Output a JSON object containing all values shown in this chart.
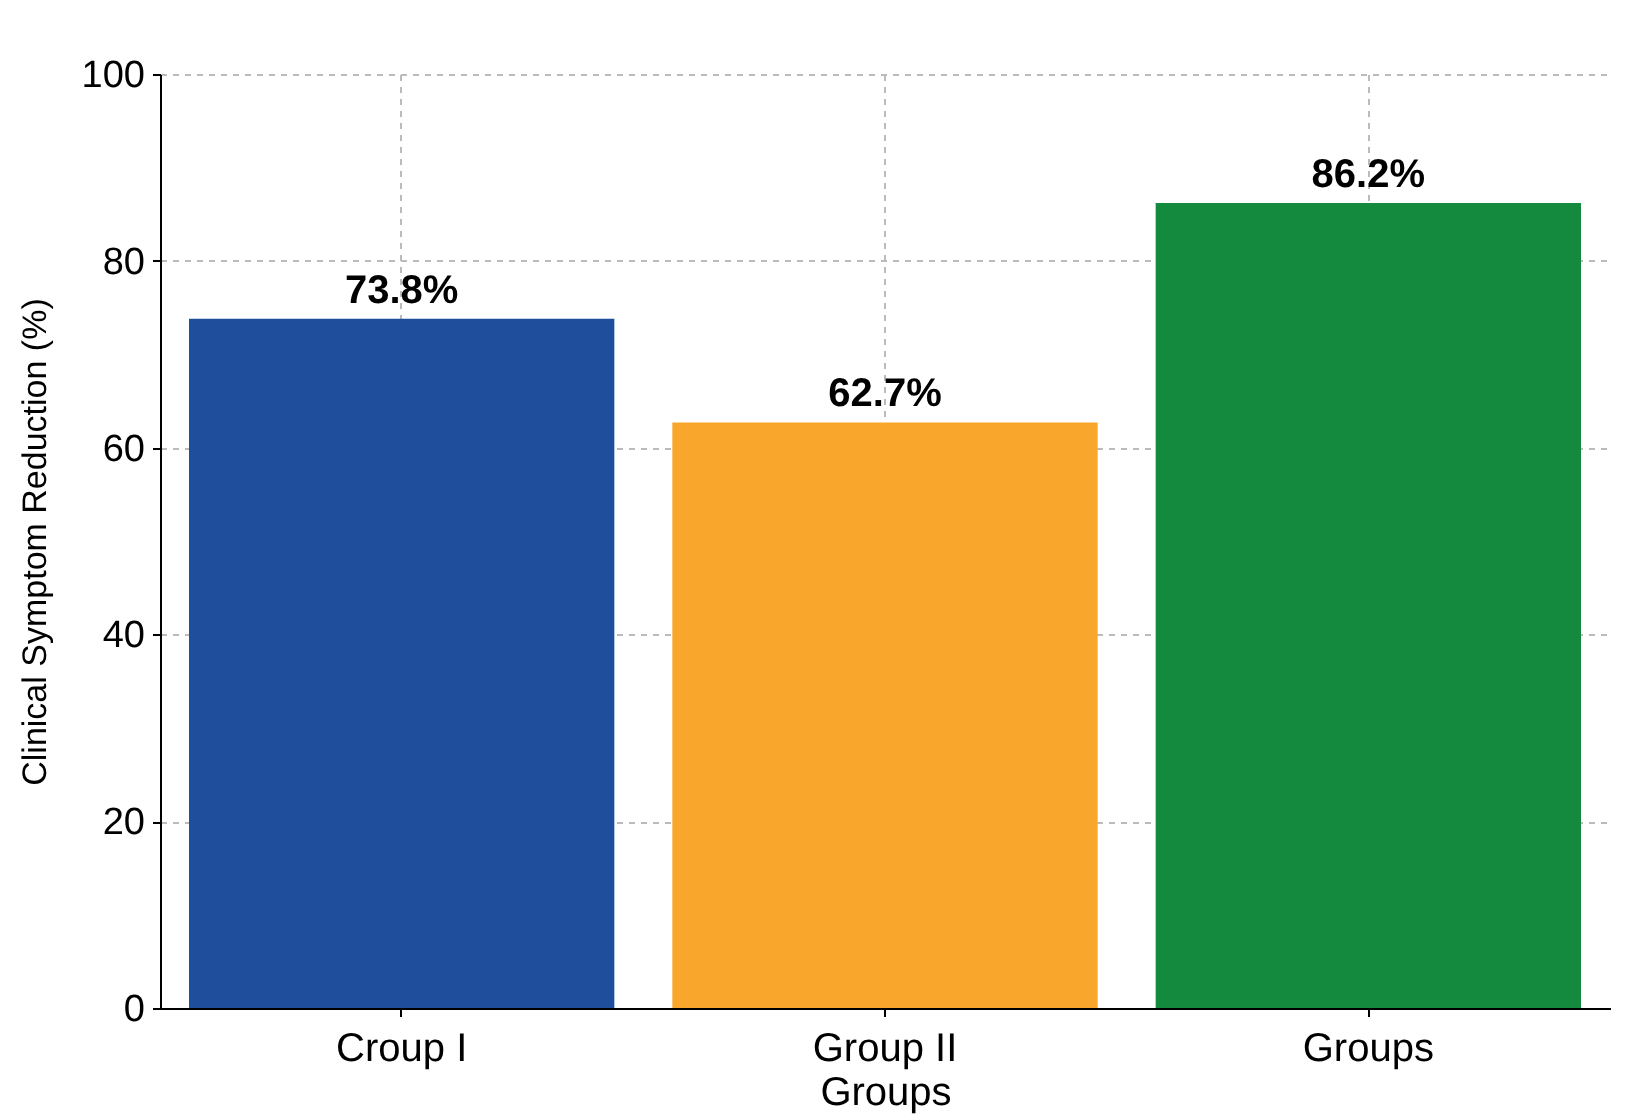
{
  "chart_data": {
    "type": "bar",
    "xlabel": "Groups",
    "ylabel": "Clinical Symptom Reduction (%)",
    "categories": [
      "Croup I",
      "Group II",
      "Groups"
    ],
    "values": [
      73.8,
      62.7,
      86.2
    ],
    "colors": [
      "#1f4e9c",
      "#f8a72c",
      "#138a3e"
    ],
    "value_labels": [
      "73.8%",
      "62.7%",
      "86.2%"
    ],
    "ylim": [
      0,
      100
    ],
    "yticks": [
      0,
      20,
      40,
      60,
      80,
      100
    ],
    "grid": true
  }
}
